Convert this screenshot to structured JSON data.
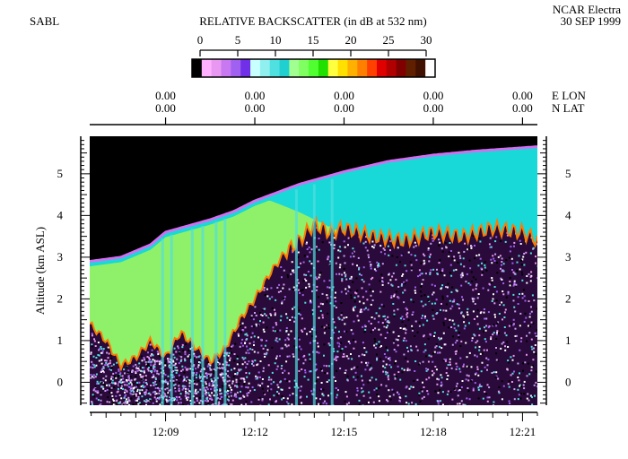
{
  "header": {
    "left_label": "SABL",
    "right_line1": "NCAR Electra",
    "right_line2": "30 SEP 1999"
  },
  "colorbar": {
    "title": "RELATIVE BACKSCATTER (in dB at 532 nm)",
    "ticks": [
      "0",
      "5",
      "10",
      "15",
      "20",
      "25",
      "30"
    ],
    "min": 0,
    "max": 30,
    "colors": [
      "#000000",
      "#ffb0ff",
      "#e898f0",
      "#c878f0",
      "#a060f0",
      "#7030e8",
      "#c8ffff",
      "#90f0f0",
      "#50e0e0",
      "#20d0d0",
      "#a0ff90",
      "#80ff60",
      "#50ff30",
      "#20e000",
      "#ffff40",
      "#ffe000",
      "#ffb000",
      "#ff8000",
      "#ff4000",
      "#e00000",
      "#b00000",
      "#800000",
      "#602000",
      "#401000",
      "#ffffff"
    ]
  },
  "top_axis": {
    "lon_label": "E LON",
    "lat_label": "N LAT",
    "lon_values": [
      "0.00",
      "0.00",
      "0.00",
      "0.00",
      "0.00"
    ],
    "lat_values": [
      "0.00",
      "0.00",
      "0.00",
      "0.00",
      "0.00"
    ]
  },
  "chart_data": {
    "type": "heatmap",
    "title": "RELATIVE BACKSCATTER (in dB at 532 nm)",
    "xlabel": "",
    "ylabel": "Altitude (km ASL)",
    "x_ticks": [
      "12:09",
      "12:12",
      "12:15",
      "12:18",
      "12:21"
    ],
    "x_tick_minutes": [
      9,
      12,
      15,
      18,
      21
    ],
    "xlim_minutes": [
      6.45,
      21.5
    ],
    "y_ticks": [
      "0",
      "1",
      "2",
      "3",
      "4",
      "5"
    ],
    "y_tick_values": [
      0,
      1,
      2,
      3,
      4,
      5
    ],
    "ylim": [
      -0.55,
      5.9
    ],
    "colorbar_range_dB": [
      0,
      30
    ],
    "aircraft_altitude_km": {
      "minute": [
        6.45,
        7.5,
        8.5,
        9.0,
        9.5,
        10.5,
        11.3,
        12.0,
        13.5,
        15.0,
        16.5,
        18.0,
        19.5,
        21.5
      ],
      "altitude": [
        2.9,
        3.0,
        3.3,
        3.6,
        3.7,
        3.9,
        4.1,
        4.35,
        4.75,
        5.05,
        5.3,
        5.45,
        5.55,
        5.65
      ]
    },
    "boundary_layer_top_km": {
      "minute": [
        6.45,
        7.0,
        7.5,
        8.0,
        8.5,
        9.0,
        9.5,
        10.5,
        11.0,
        11.5,
        12.0,
        12.5,
        13.0,
        13.5,
        14.0,
        14.5,
        15.0,
        16.0,
        17.0,
        18.0,
        19.0,
        20.0,
        21.0,
        21.5
      ],
      "altitude": [
        1.4,
        1.0,
        0.4,
        0.6,
        1.0,
        0.6,
        1.2,
        0.5,
        0.8,
        1.5,
        2.0,
        2.6,
        3.1,
        3.4,
        3.8,
        3.6,
        3.7,
        3.5,
        3.4,
        3.6,
        3.5,
        3.7,
        3.6,
        3.4
      ]
    }
  }
}
